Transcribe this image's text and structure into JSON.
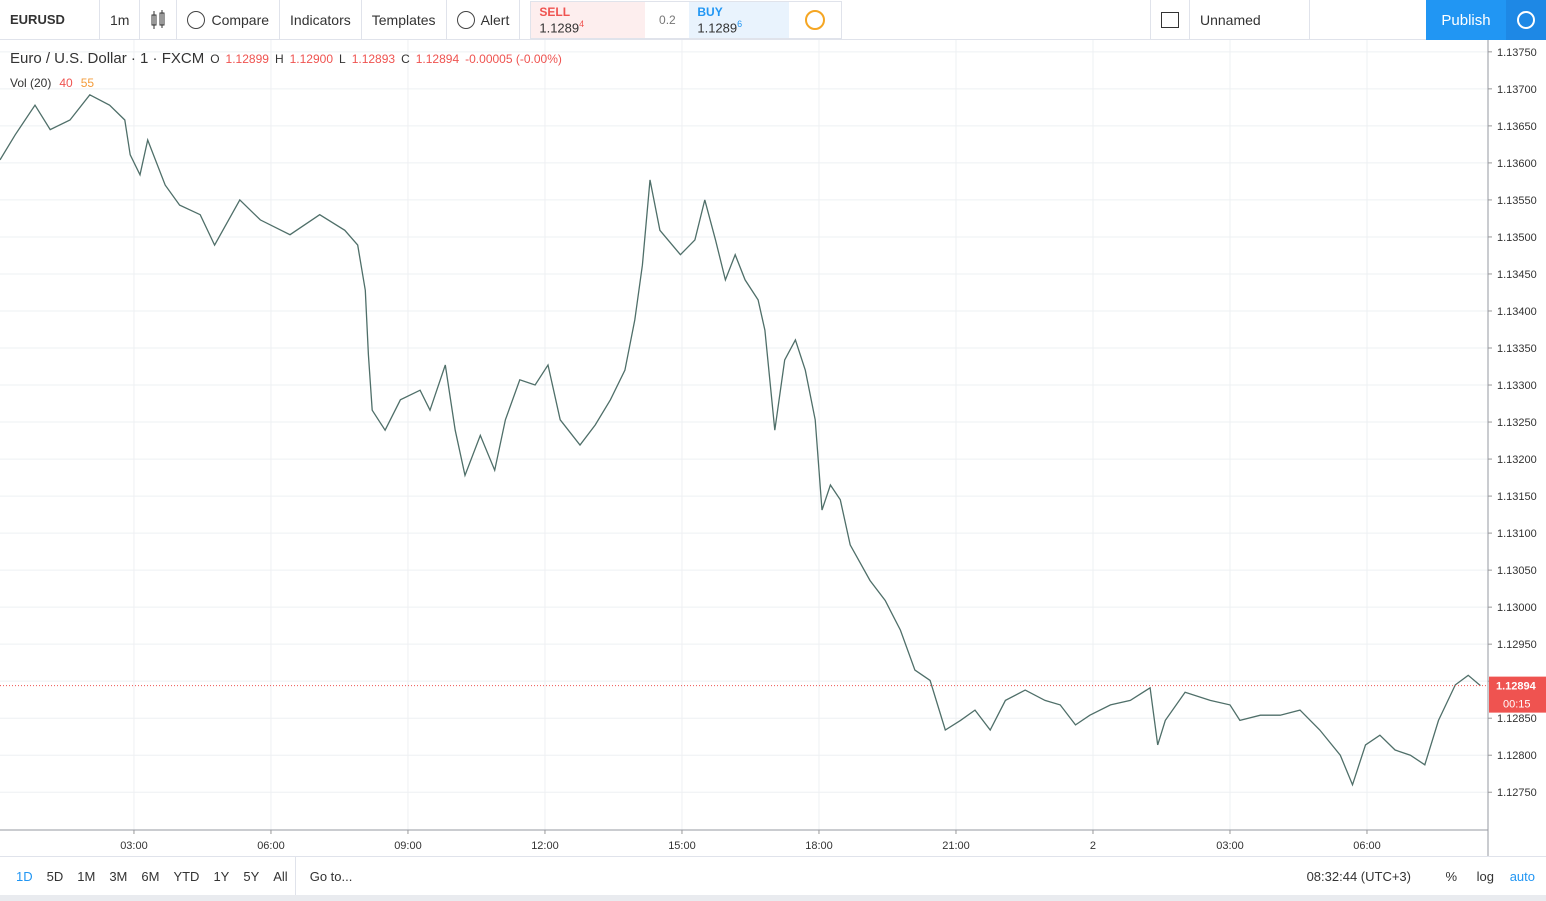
{
  "toolbar": {
    "symbol": "EURUSD",
    "interval": "1m",
    "compare": "Compare",
    "indicators": "Indicators",
    "templates": "Templates",
    "alert": "Alert",
    "sell": {
      "label": "SELL",
      "price": "1.1289",
      "pip": "4"
    },
    "spread": "0.2",
    "buy": {
      "label": "BUY",
      "price": "1.1289",
      "pip": "6"
    },
    "layout_name": "Unnamed",
    "publish": "Publish"
  },
  "legend": {
    "title": "Euro / U.S. Dollar · 1 · FXCM",
    "o_label": "O",
    "o": "1.12899",
    "h_label": "H",
    "h": "1.12900",
    "l_label": "L",
    "l": "1.12893",
    "c_label": "C",
    "c": "1.12894",
    "change": "-0.00005 (-0.00%)",
    "vol_title": "Vol (20)",
    "vol_a": "40",
    "vol_b": "55"
  },
  "chart_data": {
    "type": "line",
    "color": "#4f6f69",
    "x": [
      4,
      24,
      50,
      70,
      96,
      122,
      148,
      168,
      175,
      188,
      198,
      221,
      240,
      267,
      286,
      319,
      346,
      385,
      424,
      457,
      474,
      484,
      488,
      493,
      510,
      530,
      556,
      569,
      589,
      602,
      615,
      635,
      654,
      668,
      687,
      707,
      724,
      740,
      766,
      786,
      806,
      825,
      838,
      848,
      858,
      871,
      898,
      917,
      930,
      944,
      957,
      970,
      983,
      1000,
      1009,
      1022,
      1035,
      1049,
      1062,
      1075,
      1084,
      1095,
      1108,
      1121,
      1147,
      1167,
      1187,
      1206,
      1226,
      1246,
      1266,
      1285,
      1305,
      1325,
      1351,
      1377,
      1397,
      1417,
      1436,
      1463,
      1489,
      1515,
      1525,
      1535,
      1561,
      1594,
      1620,
      1633,
      1660,
      1686,
      1712,
      1738,
      1765,
      1781,
      1798,
      1817,
      1837,
      1857,
      1876,
      1894,
      1916,
      1933,
      1949
    ],
    "values": [
      1.13604,
      1.13638,
      1.13678,
      1.13645,
      1.13658,
      1.13692,
      1.13678,
      1.13658,
      1.13611,
      1.13584,
      1.13631,
      1.1357,
      1.13543,
      1.1353,
      1.13489,
      1.1355,
      1.13523,
      1.13503,
      1.1353,
      1.13509,
      1.13489,
      1.13428,
      1.13341,
      1.13266,
      1.13239,
      1.1328,
      1.13293,
      1.13266,
      1.13327,
      1.13239,
      1.13178,
      1.13232,
      1.13185,
      1.13253,
      1.13307,
      1.133,
      1.13327,
      1.13253,
      1.13219,
      1.13246,
      1.1328,
      1.1332,
      1.13388,
      1.13462,
      1.13577,
      1.13509,
      1.13476,
      1.13496,
      1.1355,
      1.13496,
      1.13442,
      1.13476,
      1.13442,
      1.13415,
      1.13374,
      1.13239,
      1.13334,
      1.13361,
      1.1332,
      1.13253,
      1.13131,
      1.13165,
      1.13145,
      1.13084,
      1.13036,
      1.13009,
      1.12969,
      1.12915,
      1.12901,
      1.12834,
      1.12847,
      1.12861,
      1.12834,
      1.12874,
      1.12888,
      1.12874,
      1.12868,
      1.12841,
      1.12854,
      1.12868,
      1.12874,
      1.12891,
      1.12814,
      1.12847,
      1.12885,
      1.12874,
      1.12868,
      1.12847,
      1.12854,
      1.12854,
      1.12861,
      1.12834,
      1.128,
      1.1276,
      1.12814,
      1.12827,
      1.12807,
      1.128,
      1.12787,
      1.12847,
      1.12895,
      1.12908,
      1.12894
    ],
    "xlim": [
      4,
      1959
    ],
    "ylim": [
      1.12699,
      1.13766
    ],
    "xticks": [
      {
        "value": 180,
        "label": "03:00"
      },
      {
        "value": 360,
        "label": "06:00"
      },
      {
        "value": 540,
        "label": "09:00"
      },
      {
        "value": 720,
        "label": "12:00"
      },
      {
        "value": 900,
        "label": "15:00"
      },
      {
        "value": 1080,
        "label": "18:00"
      },
      {
        "value": 1260,
        "label": "21:00"
      },
      {
        "value": 1440,
        "label": "2"
      },
      {
        "value": 1620,
        "label": "03:00"
      },
      {
        "value": 1800,
        "label": "06:00"
      }
    ],
    "yticks": [
      {
        "value": 1.1375,
        "label": "1.13750"
      },
      {
        "value": 1.137,
        "label": "1.13700"
      },
      {
        "value": 1.1365,
        "label": "1.13650"
      },
      {
        "value": 1.136,
        "label": "1.13600"
      },
      {
        "value": 1.1355,
        "label": "1.13550"
      },
      {
        "value": 1.135,
        "label": "1.13500"
      },
      {
        "value": 1.1345,
        "label": "1.13450"
      },
      {
        "value": 1.134,
        "label": "1.13400"
      },
      {
        "value": 1.1335,
        "label": "1.13350"
      },
      {
        "value": 1.133,
        "label": "1.13300"
      },
      {
        "value": 1.1325,
        "label": "1.13250"
      },
      {
        "value": 1.132,
        "label": "1.13200"
      },
      {
        "value": 1.1315,
        "label": "1.13150"
      },
      {
        "value": 1.131,
        "label": "1.13100"
      },
      {
        "value": 1.1305,
        "label": "1.13050"
      },
      {
        "value": 1.13,
        "label": "1.13000"
      },
      {
        "value": 1.1295,
        "label": "1.12950"
      },
      {
        "value": 1.129,
        "label": "1.12900"
      },
      {
        "value": 1.1285,
        "label": "1.12850"
      },
      {
        "value": 1.128,
        "label": "1.12800"
      },
      {
        "value": 1.1275,
        "label": "1.12750"
      }
    ],
    "grid": true,
    "last_price": 1.12894,
    "last_price_color": "#ef5350",
    "countdown": "00:15"
  },
  "bottom_bar": {
    "ranges": [
      "1D",
      "5D",
      "1M",
      "3M",
      "6M",
      "YTD",
      "1Y",
      "5Y",
      "All"
    ],
    "goto": "Go to...",
    "clock": "08:32:44 (UTC+3)",
    "percent": "%",
    "log": "log",
    "auto": "auto"
  }
}
